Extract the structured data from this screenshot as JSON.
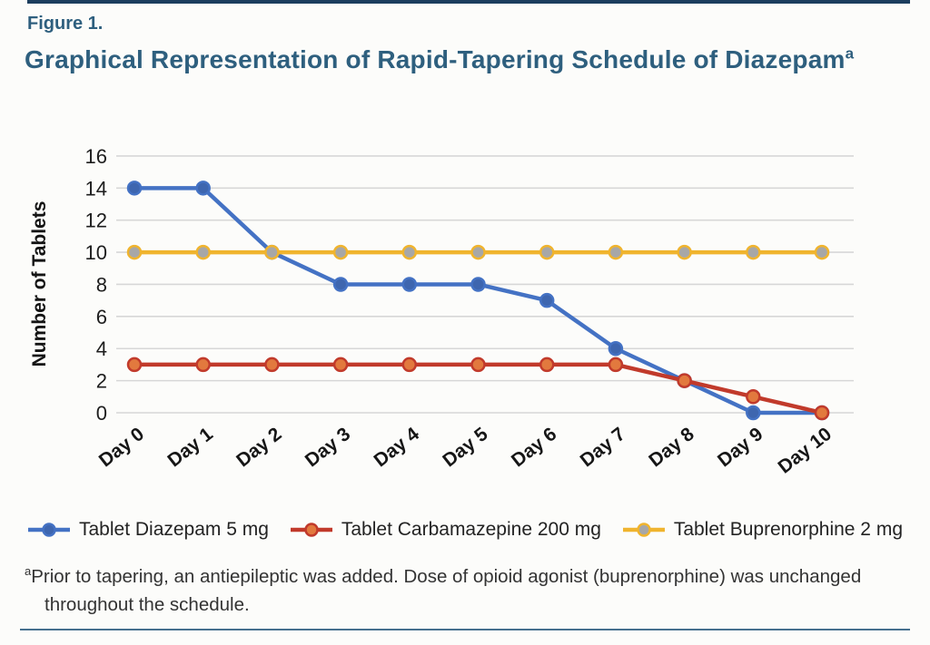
{
  "figure": {
    "label": "Figure 1.",
    "title": "Graphical Representation of Rapid-Tapering Schedule of Diazepam",
    "title_superscript": "a"
  },
  "chart_data": {
    "type": "line",
    "x": [
      "Day 0",
      "Day 1",
      "Day 2",
      "Day 3",
      "Day 4",
      "Day 5",
      "Day 6",
      "Day 7",
      "Day 8",
      "Day 9",
      "Day 10"
    ],
    "series": [
      {
        "name": "Tablet Diazepam 5 mg",
        "values": [
          14,
          14,
          10,
          8,
          8,
          8,
          7,
          4,
          2,
          0,
          0
        ],
        "line_color": "#4472C4",
        "marker_fill": "#3E66AF"
      },
      {
        "name": "Tablet Carbamazepine 200 mg",
        "values": [
          3,
          3,
          3,
          3,
          3,
          3,
          3,
          3,
          2,
          1,
          0
        ],
        "line_color": "#C13A2B",
        "marker_fill": "#E2793E"
      },
      {
        "name": "Tablet Buprenorphine 2 mg",
        "values": [
          10,
          10,
          10,
          10,
          10,
          10,
          10,
          10,
          10,
          10,
          10
        ],
        "line_color": "#F0B42E",
        "marker_fill": "#A7A7A7"
      }
    ],
    "title": "Graphical Representation of Rapid-Tapering Schedule of Diazepam",
    "xlabel": "",
    "ylabel": "Number of Tablets",
    "ylim": [
      0,
      16
    ],
    "yticks": [
      0,
      2,
      4,
      6,
      8,
      10,
      12,
      14,
      16
    ],
    "grid": true,
    "legend_position": "bottom"
  },
  "footnote": {
    "marker": "a",
    "text": "Prior to tapering, an antiepileptic was added. Dose of opioid agonist (buprenorphine) was unchanged throughout the schedule."
  },
  "colors": {
    "accent_title": "#2E5F7E",
    "top_bar": "#1C3E5E",
    "bottom_rule": "#46708E",
    "grid": "#D7D7D7",
    "axis_text": "#1D1D1D"
  }
}
